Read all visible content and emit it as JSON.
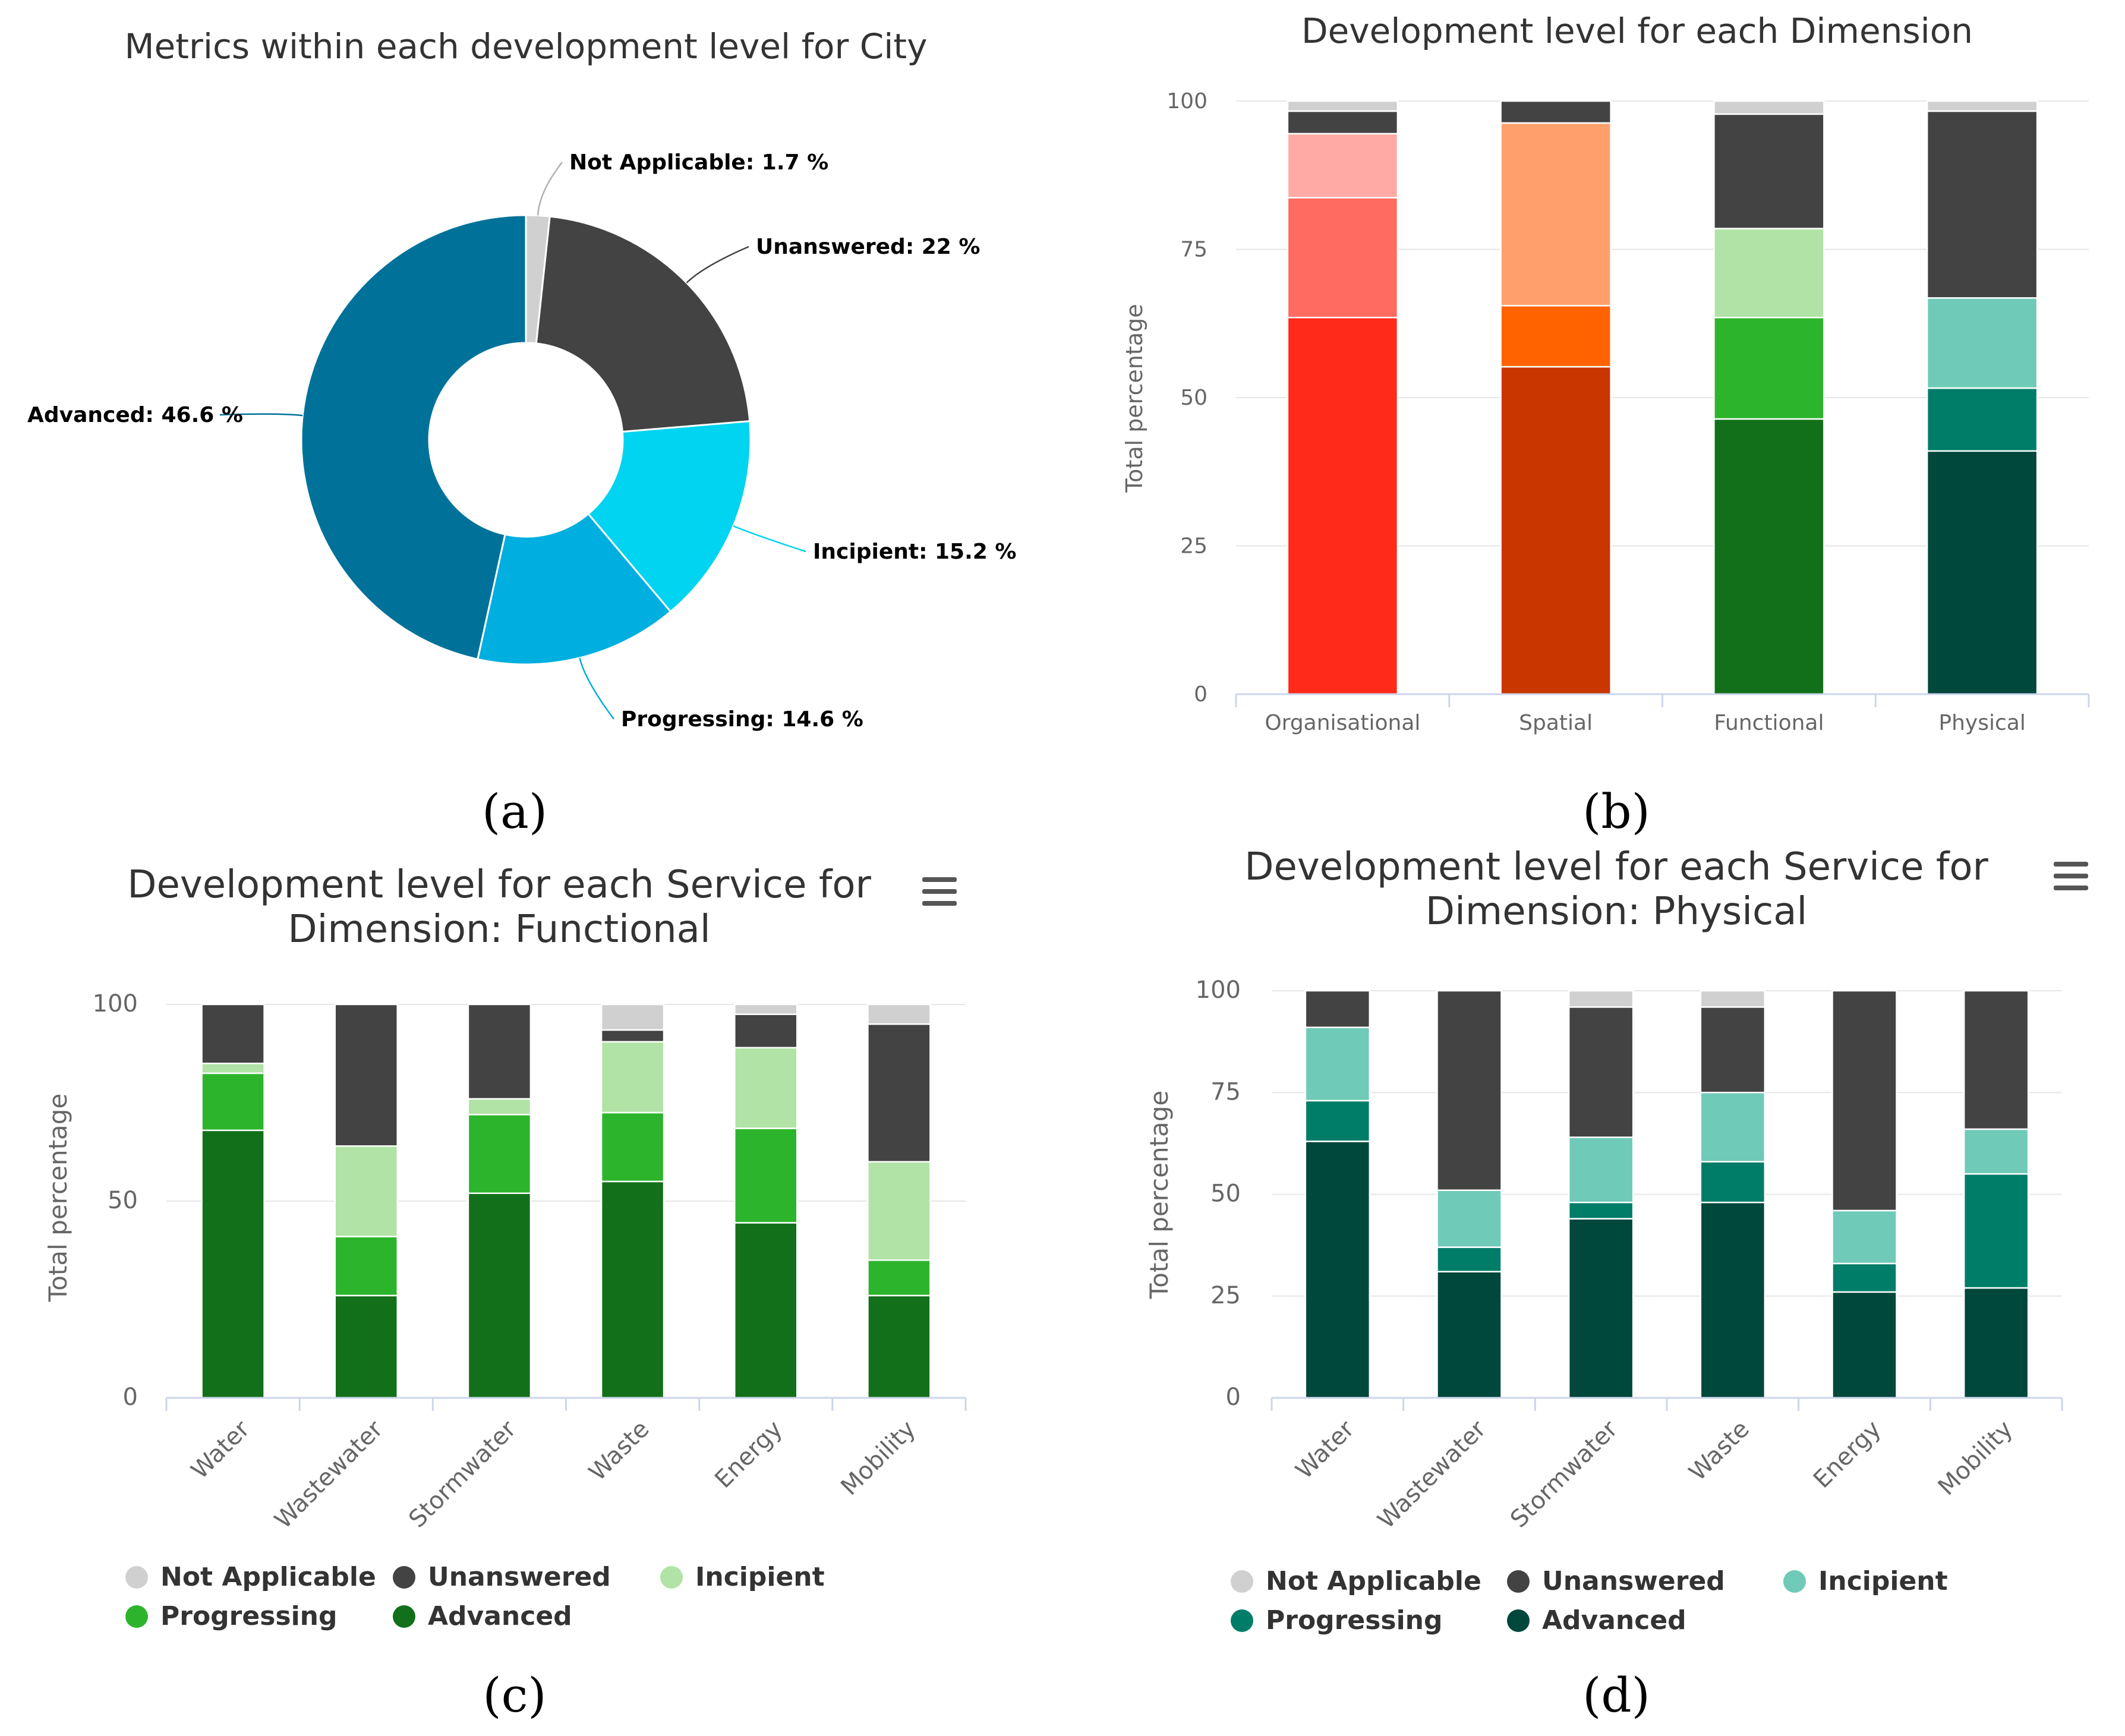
{
  "chart_data": [
    {
      "panel": "a",
      "type": "pie",
      "title": "Metrics within each development level for City",
      "slices": [
        {
          "name": "Not Applicable",
          "value": 1.7,
          "label": "Not Applicable: 1.7 %",
          "color": "#d0d0d0"
        },
        {
          "name": "Unanswered",
          "value": 22,
          "label": "Unanswered: 22 %",
          "color": "#434343"
        },
        {
          "name": "Incipient",
          "value": 15.2,
          "label": "Incipient: 15.2 %",
          "color": "#00d4f0"
        },
        {
          "name": "Progressing",
          "value": 14.6,
          "label": "Progressing: 14.6 %",
          "color": "#00aee0"
        },
        {
          "name": "Advanced",
          "value": 46.6,
          "label": "Advanced: 46.6 %",
          "color": "#007299"
        }
      ]
    },
    {
      "panel": "b",
      "type": "bar",
      "stacked": true,
      "title": "Development level for each Dimension",
      "ylabel": "Total percentage",
      "ylim": [
        0,
        100
      ],
      "yticks": [
        "0",
        "25",
        "50",
        "75",
        "100"
      ],
      "categories": [
        "Organisational",
        "Spatial",
        "Functional",
        "Physical"
      ],
      "series": [
        {
          "name": "Advanced",
          "values": [
            63.5,
            55.2,
            46.4,
            41.0
          ]
        },
        {
          "name": "Progressing",
          "values": [
            20.2,
            10.3,
            17.1,
            10.6
          ]
        },
        {
          "name": "Incipient",
          "values": [
            10.8,
            30.8,
            15.0,
            15.2
          ]
        },
        {
          "name": "Unanswered",
          "values": [
            3.8,
            3.7,
            19.3,
            31.5
          ]
        },
        {
          "name": "Not Applicable",
          "values": [
            1.7,
            0,
            2.2,
            1.7
          ]
        }
      ],
      "colors": [
        [
          "#ff2a1a",
          "#ff6b60",
          "#ffaaa5",
          "#434343",
          "#d0d0d0"
        ],
        [
          "#c93600",
          "#ff6300",
          "#ffa06c",
          "#434343",
          "#d0d0d0"
        ],
        [
          "#13701a",
          "#2cb52c",
          "#b0e3a5",
          "#434343",
          "#d0d0d0"
        ],
        [
          "#00473c",
          "#007d68",
          "#70cab8",
          "#434343",
          "#d0d0d0"
        ]
      ]
    },
    {
      "panel": "c",
      "type": "bar",
      "stacked": true,
      "title": [
        "Development level for each Service for",
        "Dimension: Functional"
      ],
      "ylabel": "Total percentage",
      "ylim": [
        0,
        100
      ],
      "yticks": [
        "0",
        "50",
        "100"
      ],
      "categories": [
        "Water",
        "Wastewater",
        "Stormwater",
        "Waste",
        "Energy",
        "Mobility"
      ],
      "series": [
        {
          "name": "Advanced",
          "values": [
            68,
            26,
            52,
            55,
            44.5,
            26
          ]
        },
        {
          "name": "Progressing",
          "values": [
            14.5,
            15,
            20,
            17.5,
            24,
            9
          ]
        },
        {
          "name": "Incipient",
          "values": [
            2.5,
            23,
            4,
            18,
            20.5,
            25
          ]
        },
        {
          "name": "Unanswered",
          "values": [
            15,
            36,
            24,
            3,
            8.5,
            35
          ]
        },
        {
          "name": "Not Applicable",
          "values": [
            0,
            0,
            0,
            6.5,
            2.5,
            5
          ]
        }
      ],
      "colors": [
        "#13701a",
        "#2cb52c",
        "#b0e3a5",
        "#434343",
        "#d0d0d0"
      ],
      "legend": [
        "Not Applicable",
        "Unanswered",
        "Incipient",
        "Progressing",
        "Advanced"
      ],
      "legend_colors": [
        "#d0d0d0",
        "#434343",
        "#b0e3a5",
        "#2cb52c",
        "#13701a"
      ]
    },
    {
      "panel": "d",
      "type": "bar",
      "stacked": true,
      "title": [
        "Development level for each Service for",
        "Dimension: Physical"
      ],
      "ylabel": "Total percentage",
      "ylim": [
        0,
        100
      ],
      "yticks": [
        "0",
        "25",
        "50",
        "75",
        "100"
      ],
      "categories": [
        "Water",
        "Wastewater",
        "Stormwater",
        "Waste",
        "Energy",
        "Mobility"
      ],
      "series": [
        {
          "name": "Advanced",
          "values": [
            63,
            31,
            44,
            48,
            26,
            27
          ]
        },
        {
          "name": "Progressing",
          "values": [
            10,
            6,
            4,
            10,
            7,
            28
          ]
        },
        {
          "name": "Incipient",
          "values": [
            18,
            14,
            16,
            17,
            13,
            11
          ]
        },
        {
          "name": "Unanswered",
          "values": [
            9,
            49,
            32,
            21,
            54,
            34
          ]
        },
        {
          "name": "Not Applicable",
          "values": [
            0,
            0,
            4,
            4,
            0,
            0
          ]
        }
      ],
      "colors": [
        "#00473c",
        "#007d68",
        "#70cab8",
        "#434343",
        "#d0d0d0"
      ],
      "legend": [
        "Not Applicable",
        "Unanswered",
        "Incipient",
        "Progressing",
        "Advanced"
      ],
      "legend_colors": [
        "#d0d0d0",
        "#434343",
        "#70cab8",
        "#007d68",
        "#00473c"
      ]
    }
  ],
  "panel_labels": {
    "a": "(a)",
    "b": "(b)",
    "c": "(c)",
    "d": "(d)"
  }
}
